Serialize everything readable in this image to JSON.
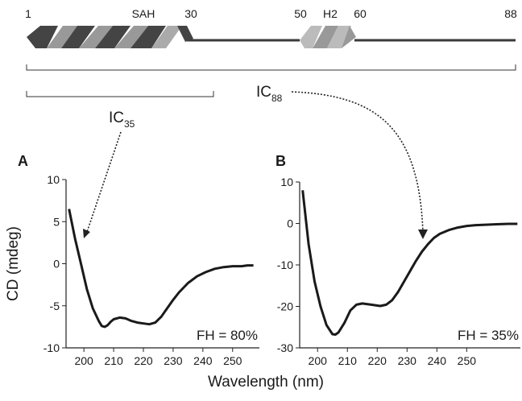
{
  "diagram": {
    "residues": [
      "1",
      "30",
      "50",
      "60",
      "88"
    ],
    "segments": [
      "SAH",
      "H2"
    ],
    "constructs": [
      {
        "name": "IC",
        "subscript": "35"
      },
      {
        "name": "IC",
        "subscript": "88"
      }
    ]
  },
  "xlabel": "Wavelength (nm)",
  "chart_data": [
    {
      "type": "line",
      "panel": "A",
      "ylabel": "CD (mdeg)",
      "annotation": "FH = 80%",
      "color": "#1a1a1a",
      "x": [
        195,
        197,
        199,
        201,
        203,
        205,
        206,
        207,
        208,
        209,
        210,
        212,
        214,
        216,
        218,
        220,
        222,
        224,
        226,
        228,
        230,
        232,
        235,
        238,
        241,
        244,
        247,
        250,
        253,
        255,
        257
      ],
      "values": [
        6.5,
        3,
        0,
        -3,
        -5.3,
        -6.8,
        -7.4,
        -7.5,
        -7.3,
        -6.9,
        -6.6,
        -6.4,
        -6.5,
        -6.8,
        -7.0,
        -7.1,
        -7.2,
        -7.0,
        -6.3,
        -5.3,
        -4.3,
        -3.4,
        -2.3,
        -1.5,
        -1.0,
        -0.6,
        -0.4,
        -0.3,
        -0.3,
        -0.2,
        -0.2
      ],
      "xlim": [
        194,
        259
      ],
      "xticks": [
        200,
        210,
        220,
        230,
        240,
        250
      ],
      "ylim": [
        -10,
        10
      ],
      "yticks": [
        -10,
        -5,
        0,
        5,
        10
      ]
    },
    {
      "type": "line",
      "panel": "B",
      "annotation": "FH = 35%",
      "color": "#1a1a1a",
      "x": [
        195,
        197,
        199,
        201,
        203,
        205,
        206,
        207,
        209,
        211,
        213,
        215,
        218,
        221,
        223,
        225,
        227,
        229,
        231,
        233,
        235,
        237,
        239,
        241,
        244,
        247,
        250,
        253,
        257,
        260,
        264,
        267
      ],
      "values": [
        8,
        -5,
        -14,
        -20,
        -24.5,
        -26.7,
        -26.8,
        -26.3,
        -24,
        -21,
        -19.6,
        -19.3,
        -19.6,
        -19.9,
        -19.6,
        -18.5,
        -16.5,
        -14,
        -11.5,
        -9,
        -6.8,
        -5,
        -3.5,
        -2.5,
        -1.6,
        -1.0,
        -0.6,
        -0.4,
        -0.3,
        -0.2,
        -0.1,
        -0.1
      ],
      "xlim": [
        194,
        268
      ],
      "xticks": [
        200,
        210,
        220,
        230,
        240,
        250
      ],
      "ylim": [
        -30,
        10
      ],
      "yticks": [
        -30,
        -20,
        -10,
        0,
        10
      ]
    }
  ]
}
